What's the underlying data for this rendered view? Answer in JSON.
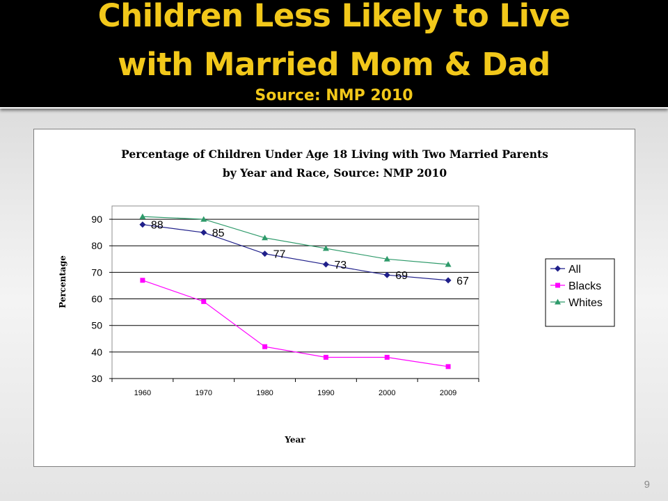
{
  "slide": {
    "title_line1": "Children Less Likely to Live",
    "title_line2": "with Married Mom & Dad",
    "title_line3": "Source: NMP 2010",
    "number": "9",
    "colors": {
      "title_bg": "#000000",
      "title_text": "#f2c81a"
    }
  },
  "chart_data": {
    "type": "line",
    "title_line1": "Percentage of Children Under Age 18 Living with Two Married Parents",
    "title_line2": "by Year and Race, Source: NMP 2010",
    "xlabel": "Year",
    "ylabel": "Percentage",
    "categories": [
      "1960",
      "1970",
      "1980",
      "1990",
      "2000",
      "2009"
    ],
    "ylim": [
      30,
      95
    ],
    "yticks": [
      30,
      40,
      50,
      60,
      70,
      80,
      90
    ],
    "grid": "horizontal",
    "legend_position": "right",
    "series": [
      {
        "name": "All",
        "values": [
          88,
          85,
          77,
          73,
          69,
          67
        ],
        "color": "#1f1f8a",
        "marker": "diamond",
        "data_labels": [
          "88",
          "85",
          "77",
          "73",
          "69",
          "67"
        ]
      },
      {
        "name": "Blacks",
        "values": [
          67,
          59,
          42,
          38,
          38,
          34.5
        ],
        "color": "#ff00ff",
        "marker": "square"
      },
      {
        "name": "Whites",
        "values": [
          91,
          90,
          83,
          79,
          75,
          73
        ],
        "color": "#2e9a6a",
        "marker": "triangle"
      }
    ]
  }
}
